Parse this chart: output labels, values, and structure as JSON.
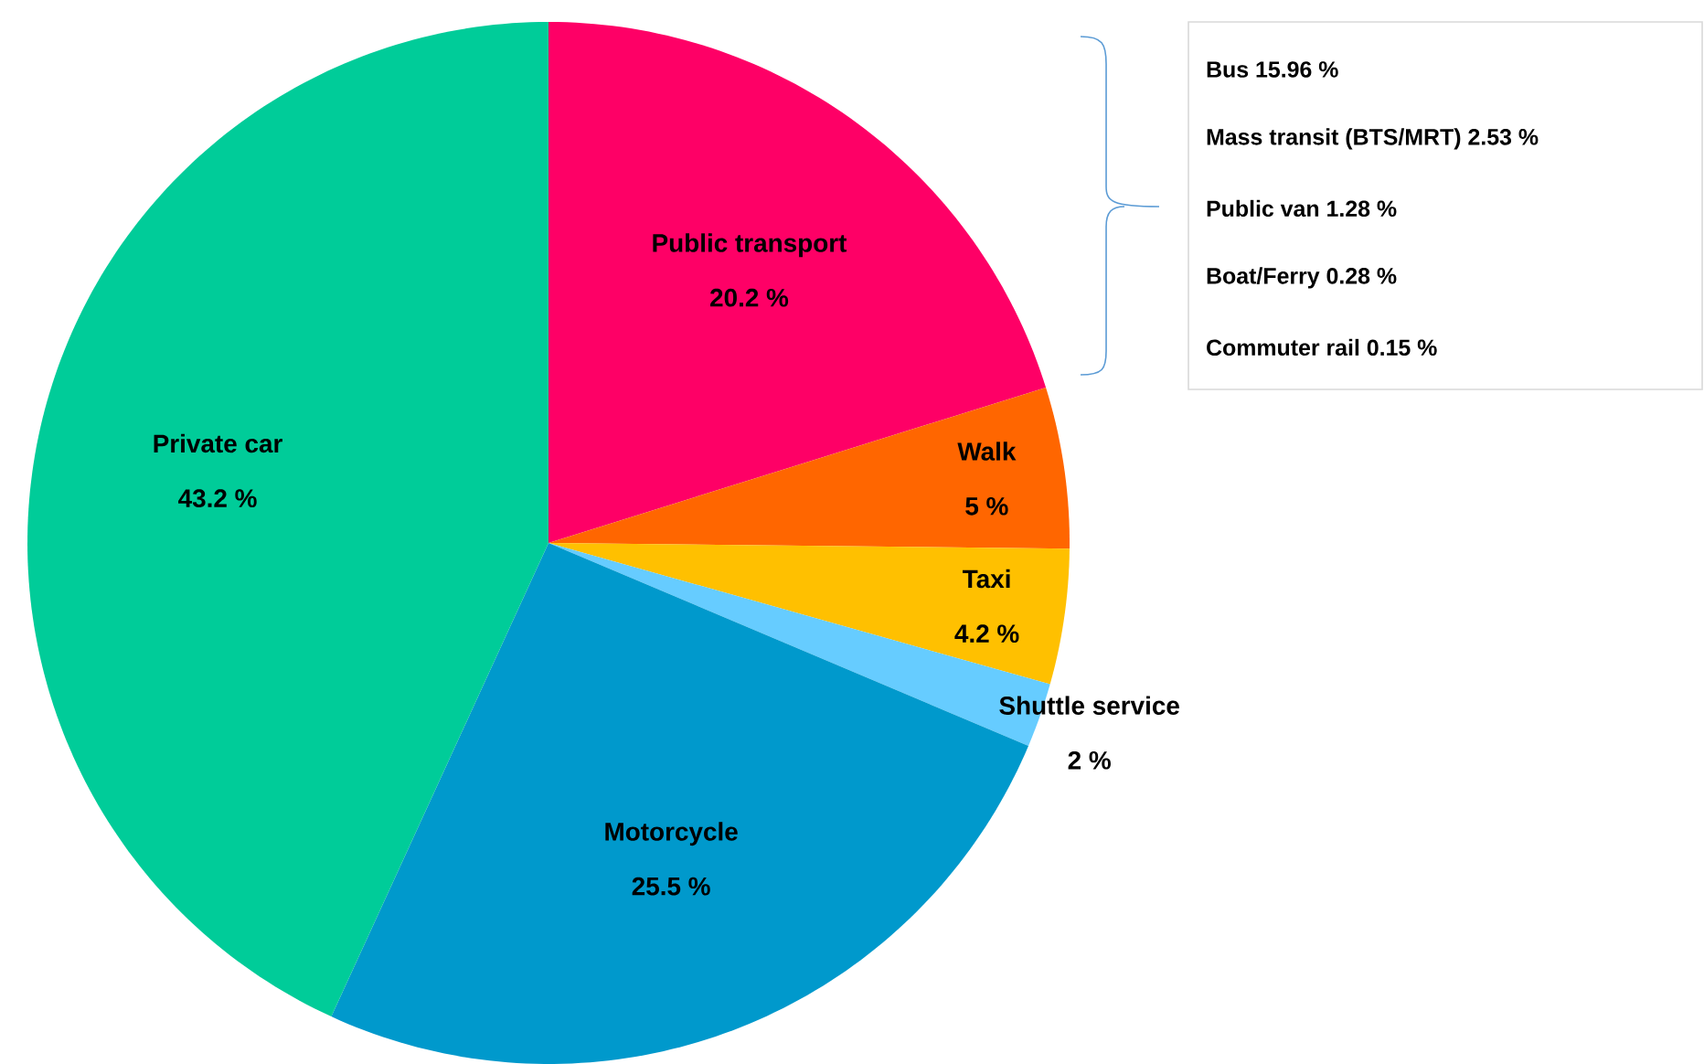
{
  "chart_data": {
    "type": "pie",
    "categories": [
      "Public transport",
      "Walk",
      "Taxi",
      "Shuttle service",
      "Motorcycle",
      "Private car"
    ],
    "values": [
      20.2,
      5,
      4.2,
      2,
      25.5,
      43.2
    ],
    "value_labels": [
      "20.2 %",
      "5 %",
      "4.2 %",
      "2 %",
      "25.5 %",
      "43.2 %"
    ],
    "colors": [
      "#fe0066",
      "#ff6600",
      "#ffc000",
      "#66ccff",
      "#0099cc",
      "#00cc99"
    ],
    "annotations": [
      "Bus 15.96 %",
      "Mass transit (BTS/MRT) 2.53 %",
      "Public van 1.28 %",
      "Boat/Ferry 0.28 %",
      "Commuter rail 0.15 %"
    ]
  }
}
